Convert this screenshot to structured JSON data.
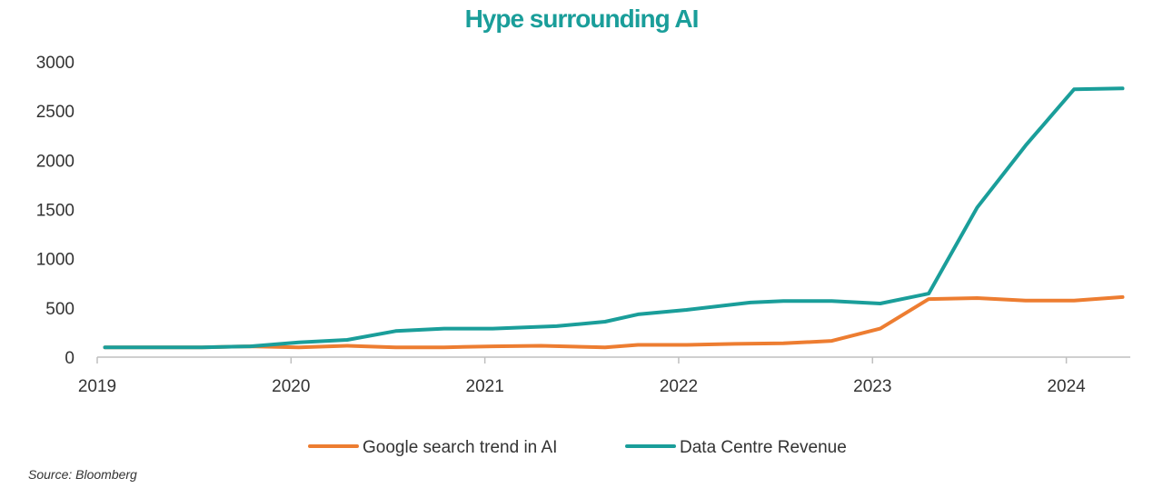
{
  "chart_data": {
    "type": "line",
    "title": "Hype surrounding AI",
    "title_color": "#1a9e9a",
    "source": "Source: Bloomberg",
    "xlim": [
      2019,
      2024.33
    ],
    "ylim": [
      0,
      3000
    ],
    "y_ticks": [
      0,
      500,
      1000,
      1500,
      2000,
      2500,
      3000
    ],
    "x_ticks": [
      2019,
      2020,
      2021,
      2022,
      2023,
      2024
    ],
    "x_tick_labels": [
      "2019",
      "2020",
      "2021",
      "2022",
      "2023",
      "2024"
    ],
    "grid": false,
    "legend_position": "bottom",
    "series": [
      {
        "name": "Google search trend in AI",
        "color": "#ed7d31",
        "x": [
          2019.04,
          2019.54,
          2019.79,
          2020.04,
          2020.29,
          2020.54,
          2020.79,
          2021.04,
          2021.29,
          2021.62,
          2021.79,
          2022.04,
          2022.29,
          2022.54,
          2022.79,
          2023.04,
          2023.29,
          2023.54,
          2023.79,
          2024.04,
          2024.29
        ],
        "y": [
          100,
          100,
          110,
          100,
          115,
          100,
          100,
          110,
          115,
          100,
          125,
          125,
          135,
          140,
          165,
          290,
          590,
          600,
          575,
          575,
          610
        ]
      },
      {
        "name": "Data Centre Revenue",
        "color": "#1a9e9a",
        "x": [
          2019.04,
          2019.54,
          2019.79,
          2020.04,
          2020.29,
          2020.54,
          2020.79,
          2021.04,
          2021.37,
          2021.62,
          2021.79,
          2022.04,
          2022.37,
          2022.54,
          2022.79,
          2023.04,
          2023.29,
          2023.54,
          2023.79,
          2024.04,
          2024.29
        ],
        "y": [
          100,
          100,
          110,
          150,
          175,
          265,
          290,
          290,
          315,
          360,
          435,
          480,
          555,
          570,
          570,
          545,
          645,
          1520,
          2150,
          2720,
          2730
        ]
      }
    ]
  }
}
